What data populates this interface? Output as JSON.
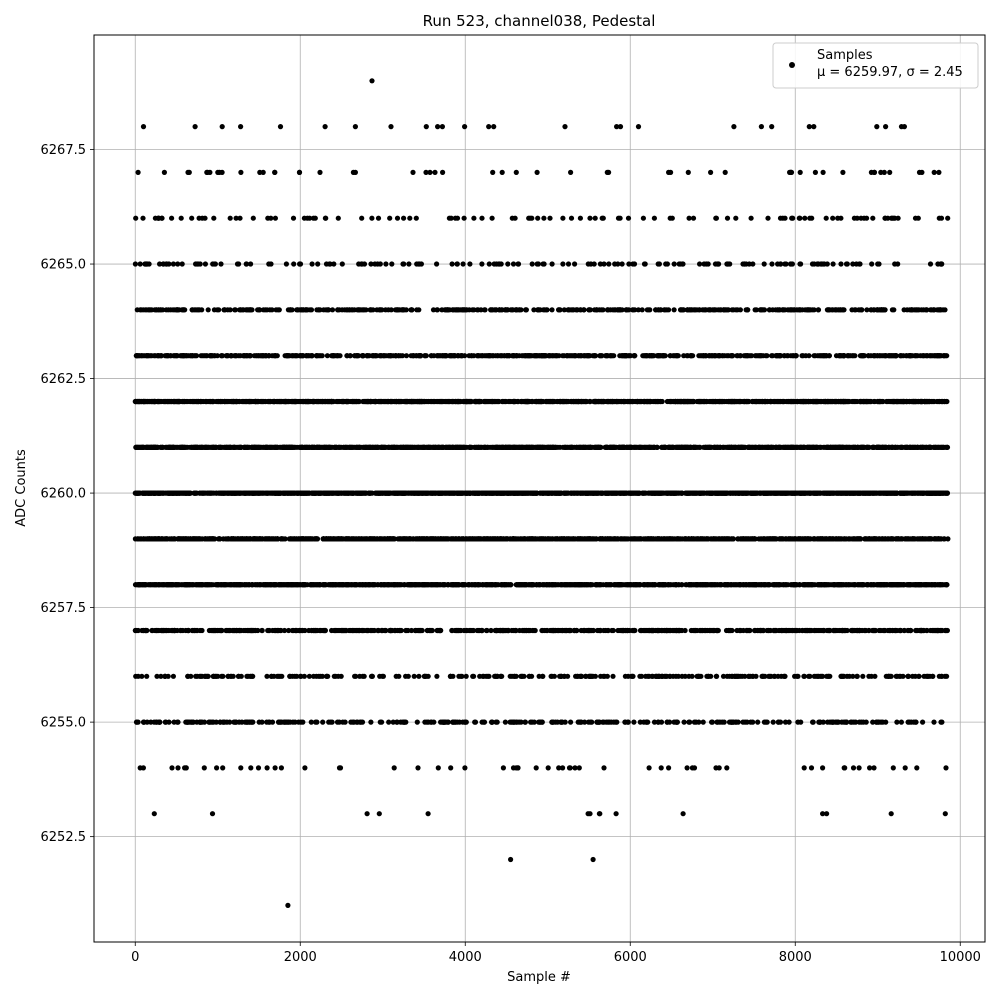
{
  "chart_data": {
    "type": "scatter",
    "title": "Run 523, channel038, Pedestal",
    "xlabel": "Sample #",
    "ylabel": "ADC Counts",
    "xlim": [
      -500,
      10300
    ],
    "ylim": [
      6250.2,
      6270.0
    ],
    "xticks": [
      0,
      2000,
      4000,
      6000,
      8000,
      10000
    ],
    "xtick_labels": [
      "0",
      "2000",
      "4000",
      "6000",
      "8000",
      "10000"
    ],
    "yticks": [
      6252.5,
      6255.0,
      6257.5,
      6260.0,
      6262.5,
      6265.0,
      6267.5
    ],
    "ytick_labels": [
      "6252.5",
      "6255.0",
      "6257.5",
      "6260.0",
      "6262.5",
      "6265.0",
      "6267.5"
    ],
    "grid": true,
    "legend_position": "top-right",
    "series": [
      {
        "name": "Samples",
        "label": "Samples",
        "stats": "μ = 6259.97, σ = 2.45",
        "color": "#000000",
        "marker": "circle",
        "x_range": [
          0,
          9850
        ],
        "n_points": 9850,
        "level_counts": [
          {
            "y": 6251,
            "count": 1
          },
          {
            "y": 6252,
            "count": 2
          },
          {
            "y": 6253,
            "count": 15
          },
          {
            "y": 6254,
            "count": 60
          },
          {
            "y": 6255,
            "count": 330
          },
          {
            "y": 6256,
            "count": 310
          },
          {
            "y": 6257,
            "count": 680
          },
          {
            "y": 6258,
            "count": 1350
          },
          {
            "y": 6259,
            "count": 1180
          },
          {
            "y": 6260,
            "count": 1520
          },
          {
            "y": 6261,
            "count": 1450
          },
          {
            "y": 6262,
            "count": 1360
          },
          {
            "y": 6263,
            "count": 700
          },
          {
            "y": 6264,
            "count": 480
          },
          {
            "y": 6265,
            "count": 170
          },
          {
            "y": 6266,
            "count": 110
          },
          {
            "y": 6267,
            "count": 55
          },
          {
            "y": 6268,
            "count": 25
          },
          {
            "y": 6269,
            "count": 1
          }
        ],
        "extreme_points": [
          {
            "x": 1850,
            "y": 6251
          },
          {
            "x": 4550,
            "y": 6252
          },
          {
            "x": 5550,
            "y": 6252
          },
          {
            "x": 2870,
            "y": 6269
          },
          {
            "x": 100,
            "y": 6268
          },
          {
            "x": 7590,
            "y": 6268
          }
        ]
      }
    ]
  }
}
